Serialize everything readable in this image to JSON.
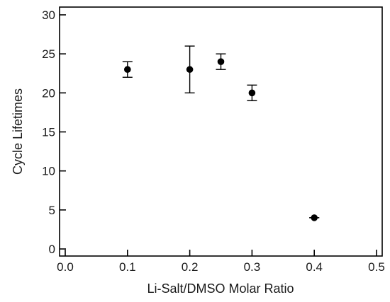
{
  "chart_data": {
    "type": "scatter",
    "title": "",
    "xlabel": "Li-Salt/DMSO Molar Ratio",
    "ylabel": "Cycle Lifetimes",
    "xlim": [
      0.0,
      0.5
    ],
    "ylim": [
      0,
      30
    ],
    "xticks": [
      "0.0",
      "0.1",
      "0.2",
      "0.3",
      "0.4",
      "0.5"
    ],
    "yticks": [
      "0",
      "5",
      "10",
      "15",
      "20",
      "25",
      "30"
    ],
    "grid": false,
    "legend": "none",
    "marker_color": "#000000",
    "points": [
      {
        "x": 0.1,
        "y": 23,
        "err_low": 22,
        "err_high": 24
      },
      {
        "x": 0.2,
        "y": 23,
        "err_low": 20,
        "err_high": 26
      },
      {
        "x": 0.25,
        "y": 24,
        "err_low": 23,
        "err_high": 25
      },
      {
        "x": 0.3,
        "y": 20,
        "err_low": 19,
        "err_high": 21
      },
      {
        "x": 0.4,
        "y": 4,
        "err_low": 4,
        "err_high": 4
      }
    ]
  }
}
